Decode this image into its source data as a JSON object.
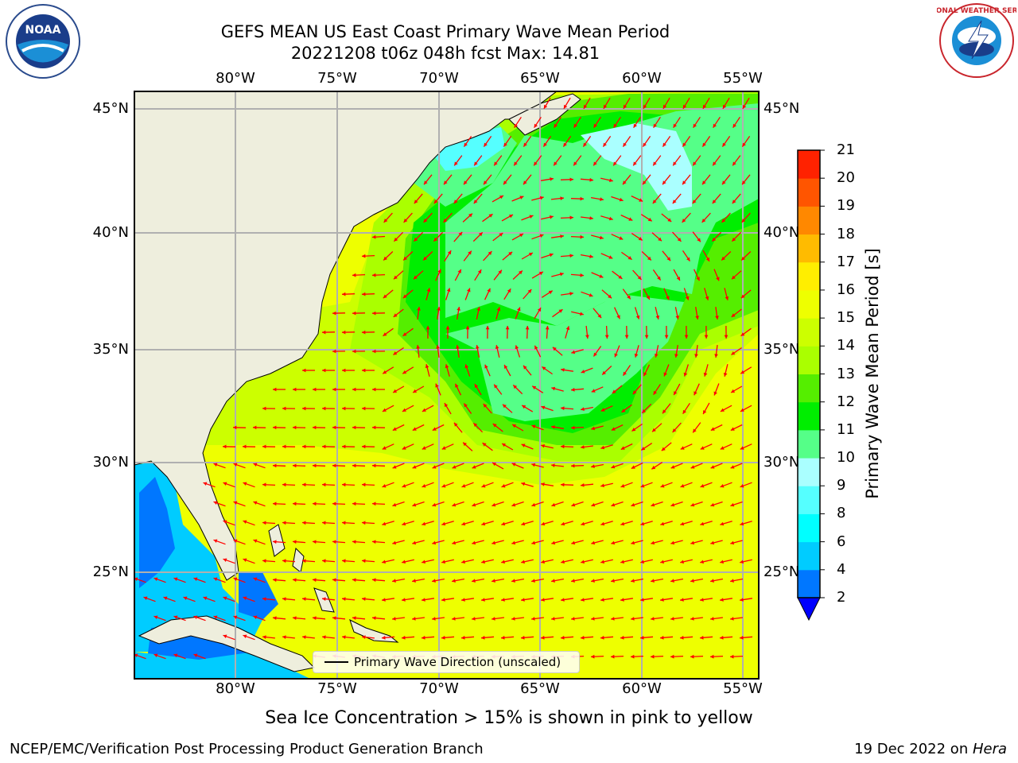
{
  "header": {
    "title_line1": "GEFS MEAN US East Coast Primary Wave Mean Period",
    "title_line2": "20221208 t06z 048h fcst   Max: 14.81"
  },
  "logos": {
    "left": "NOAA",
    "right": "NATIONAL WEATHER SERVICE"
  },
  "map": {
    "lon_labels": [
      "80°W",
      "75°W",
      "70°W",
      "65°W",
      "60°W",
      "55°W"
    ],
    "lat_labels": [
      "45°N",
      "40°N",
      "35°N",
      "30°N",
      "25°N"
    ],
    "lon_range": [
      -85,
      -54.5
    ],
    "lat_range": [
      20,
      46
    ],
    "grid": true,
    "legend": "Primary Wave Direction (unscaled)",
    "arrow_color": "#ff0000"
  },
  "colorbar": {
    "label": "Primary Wave Mean Period [s]",
    "ticks": [
      "2",
      "4",
      "6",
      "8",
      "9",
      "10",
      "11",
      "12",
      "13",
      "14",
      "15",
      "16",
      "17",
      "18",
      "19",
      "20",
      "21"
    ],
    "colors": [
      "#0077ff",
      "#00ccff",
      "#00ffff",
      "#55ffff",
      "#aaffff",
      "#55ff88",
      "#00ee00",
      "#55ee00",
      "#aaff00",
      "#ccff00",
      "#eeff00",
      "#ffee00",
      "#ffbb00",
      "#ff8800",
      "#ff5500",
      "#ff2200"
    ],
    "under_color": "#0000ff"
  },
  "note": "Sea Ice Concentration > 15% is shown in pink to yellow",
  "footer": {
    "left": "NCEP/EMC/Verification Post Processing Product Generation Branch",
    "right_date": "19 Dec 2022 on ",
    "right_machine": "Hera"
  }
}
